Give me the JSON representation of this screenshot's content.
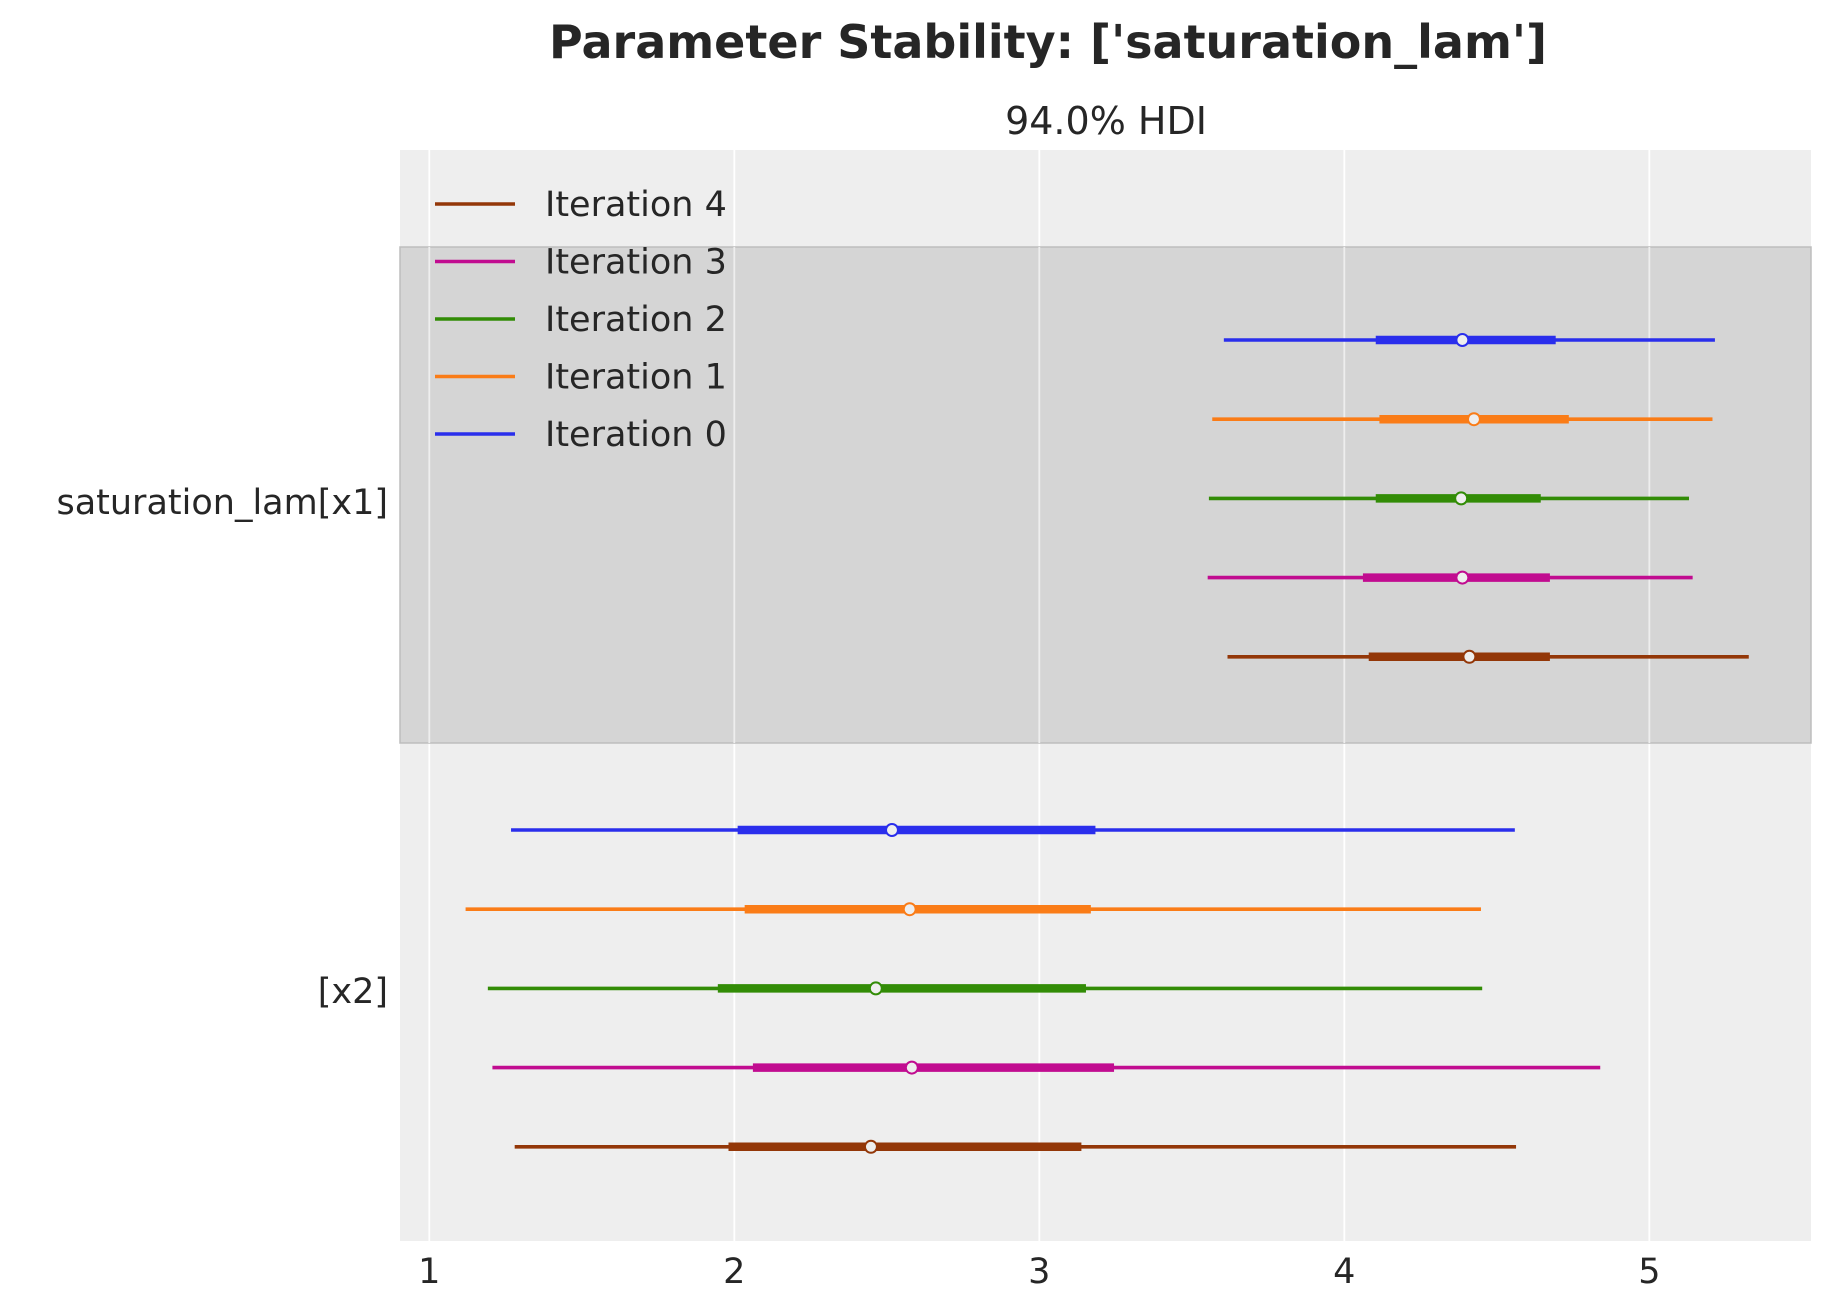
{
  "chart_data": {
    "type": "forest",
    "title": "Parameter Stability: ['saturation_lam']",
    "subtitle": "94.0% HDI",
    "xlim": [
      0.904,
      5.53
    ],
    "x_ticks": [
      "1",
      "2",
      "3",
      "4",
      "5"
    ],
    "x_tick_values": [
      1,
      2,
      3,
      4,
      5
    ],
    "grid": true,
    "legend_position": "top-left",
    "variables": [
      {
        "label": "saturation_lam[x1]",
        "highlighted": true
      },
      {
        "label": "[x2]",
        "highlighted": false
      }
    ],
    "series": [
      {
        "name": "Iteration 0",
        "color": "#2a2eec",
        "data": [
          {
            "hdi_low": 3.605,
            "hdi_high": 5.215,
            "iqr_low": 4.103,
            "iqr_high": 4.693,
            "median": 4.387
          },
          {
            "hdi_low": 1.268,
            "hdi_high": 4.559,
            "iqr_low": 2.011,
            "iqr_high": 3.184,
            "median": 2.517
          }
        ]
      },
      {
        "name": "Iteration 1",
        "color": "#fa7c17",
        "data": [
          {
            "hdi_low": 3.567,
            "hdi_high": 5.207,
            "iqr_low": 4.115,
            "iqr_high": 4.736,
            "median": 4.425
          },
          {
            "hdi_low": 1.119,
            "hdi_high": 4.448,
            "iqr_low": 2.034,
            "iqr_high": 3.169,
            "median": 2.575
          }
        ]
      },
      {
        "name": "Iteration 2",
        "color": "#328c06",
        "data": [
          {
            "hdi_low": 3.556,
            "hdi_high": 5.13,
            "iqr_low": 4.103,
            "iqr_high": 4.644,
            "median": 4.383
          },
          {
            "hdi_low": 1.192,
            "hdi_high": 4.452,
            "iqr_low": 1.946,
            "iqr_high": 3.153,
            "median": 2.464
          }
        ]
      },
      {
        "name": "Iteration 3",
        "color": "#c10c90",
        "data": [
          {
            "hdi_low": 3.552,
            "hdi_high": 5.142,
            "iqr_low": 4.061,
            "iqr_high": 4.674,
            "median": 4.387
          },
          {
            "hdi_low": 1.207,
            "hdi_high": 4.839,
            "iqr_low": 2.061,
            "iqr_high": 3.245,
            "median": 2.582
          }
        ]
      },
      {
        "name": "Iteration 4",
        "color": "#933708",
        "data": [
          {
            "hdi_low": 3.617,
            "hdi_high": 5.326,
            "iqr_low": 4.08,
            "iqr_high": 4.674,
            "median": 4.41
          },
          {
            "hdi_low": 1.28,
            "hdi_high": 4.563,
            "iqr_low": 1.981,
            "iqr_high": 3.138,
            "median": 2.448
          }
        ]
      }
    ],
    "legend_order": [
      "Iteration 4",
      "Iteration 3",
      "Iteration 2",
      "Iteration 1",
      "Iteration 0"
    ]
  }
}
